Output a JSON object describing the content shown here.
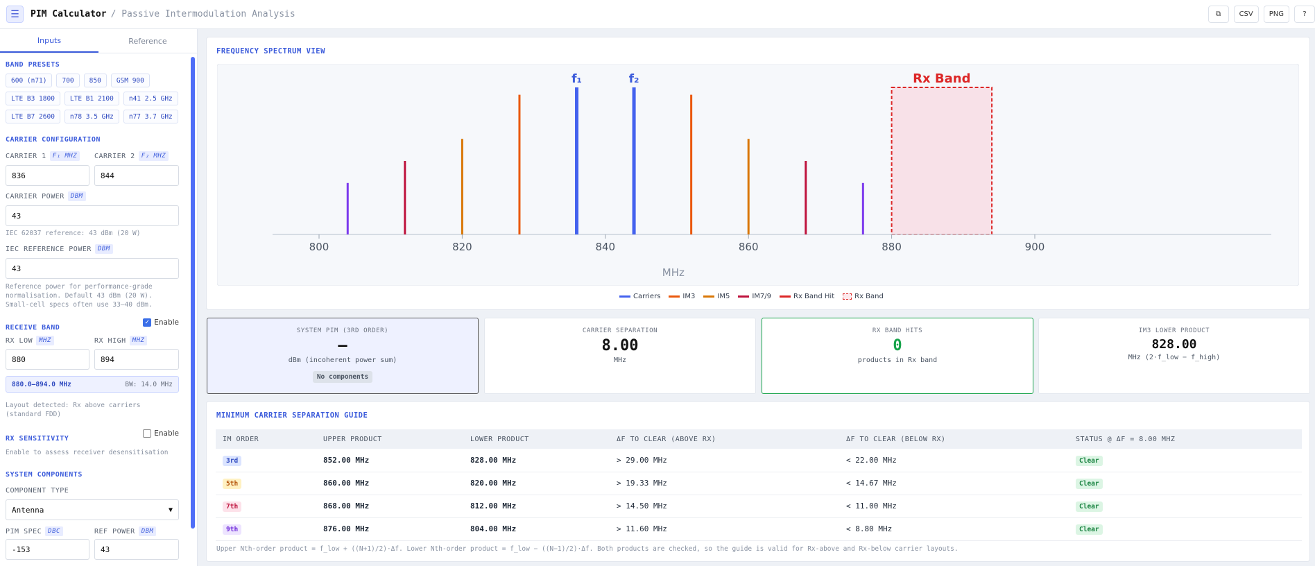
{
  "app": {
    "title": "PIM Calculator",
    "subtitle": "/ Passive Intermodulation Analysis"
  },
  "toolbar": {
    "copy_icon": "copy-icon",
    "csv": "CSV",
    "png": "PNG",
    "help_icon": "help-icon"
  },
  "sidebar": {
    "tabs": [
      "Inputs",
      "Reference"
    ],
    "band_presets_title": "BAND PRESETS",
    "presets": [
      "600 (n71)",
      "700",
      "850",
      "GSM 900",
      "LTE B3 1800",
      "LTE B1 2100",
      "n41 2.5 GHz",
      "LTE B7 2600",
      "n78 3.5 GHz",
      "n77 3.7 GHz"
    ],
    "carrier_title": "CARRIER CONFIGURATION",
    "carrier1_label": "CARRIER 1",
    "carrier1_unit": "F₁ MHZ",
    "carrier1_value": "836",
    "carrier2_label": "CARRIER 2",
    "carrier2_unit": "F₂ MHZ",
    "carrier2_value": "844",
    "power_label": "CARRIER POWER",
    "power_unit": "DBM",
    "power_value": "43",
    "power_hint": "IEC 62037 reference: 43 dBm (20 W)",
    "iec_label": "IEC REFERENCE POWER",
    "iec_unit": "DBM",
    "iec_value": "43",
    "iec_hint": "Reference power for performance-grade normalisation. Default 43 dBm (20 W). Small-cell specs often use 33–40 dBm.",
    "rx_title": "RECEIVE BAND",
    "rx_enable": "Enable",
    "rx_low_label": "RX LOW",
    "rx_low_unit": "MHZ",
    "rx_low_value": "880",
    "rx_high_label": "RX HIGH",
    "rx_high_unit": "MHZ",
    "rx_high_value": "894",
    "rx_range": "880.0–894.0 MHz",
    "rx_bw": "BW: 14.0 MHz",
    "rx_hint": "Layout detected: Rx above carriers (standard FDD)",
    "sens_title": "RX SENSITIVITY",
    "sens_enable": "Enable",
    "sens_hint": "Enable to assess receiver desensitisation",
    "sys_title": "SYSTEM COMPONENTS",
    "comp_label": "COMPONENT TYPE",
    "comp_value": "Antenna",
    "pim_label": "PIM SPEC",
    "pim_unit": "DBC",
    "pim_value": "-153",
    "ref_label": "REF POWER",
    "ref_unit": "DBM",
    "ref_value": "43"
  },
  "spectrum": {
    "title": "FREQUENCY SPECTRUM VIEW",
    "legend": [
      "Carriers",
      "IM3",
      "IM5",
      "IM7/9",
      "Rx Band Hit",
      "Rx Band"
    ]
  },
  "chart_data": {
    "type": "bar",
    "xlabel": "MHz",
    "xlim": [
      796,
      902
    ],
    "x_ticks": [
      800,
      820,
      840,
      860,
      880,
      900
    ],
    "rx_band": {
      "label": "Rx Band",
      "low": 880,
      "high": 894
    },
    "carrier_labels": [
      "f₁",
      "f₂"
    ],
    "series": [
      {
        "name": "Carriers",
        "color": "#4361ee",
        "x": [
          836,
          844
        ],
        "values": [
          1.0,
          1.0
        ]
      },
      {
        "name": "IM3",
        "color": "#ea580c",
        "x": [
          828,
          852
        ],
        "values": [
          0.95,
          0.95
        ]
      },
      {
        "name": "IM5",
        "color": "#d97706",
        "x": [
          820,
          860
        ],
        "values": [
          0.65,
          0.65
        ]
      },
      {
        "name": "IM7/9",
        "color": "#be123c",
        "x": [
          812,
          868
        ],
        "values": [
          0.5,
          0.5
        ]
      },
      {
        "name": "IM9",
        "color": "#7c3aed",
        "x": [
          804,
          876
        ],
        "values": [
          0.35,
          0.35
        ]
      }
    ]
  },
  "stats": [
    {
      "title": "SYSTEM PIM (3RD ORDER)",
      "value": "—",
      "sub": "dBm (incoherent power sum)",
      "badge": "No components"
    },
    {
      "title": "CARRIER SEPARATION",
      "value": "8.00",
      "sub": "MHz"
    },
    {
      "title": "RX BAND HITS",
      "value": "0",
      "sub": "products in Rx band"
    },
    {
      "title": "IM3 LOWER PRODUCT",
      "value": "828.00",
      "sub": "MHz (2·f_low − f_high)"
    }
  ],
  "guide": {
    "title": "MINIMUM CARRIER SEPARATION GUIDE",
    "headers": [
      "IM ORDER",
      "UPPER PRODUCT",
      "LOWER PRODUCT",
      "ΔF TO CLEAR (ABOVE RX)",
      "ΔF TO CLEAR (BELOW RX)",
      "STATUS @ ΔF = 8.00 MHZ"
    ],
    "rows": [
      [
        "3rd",
        "852.00 MHz",
        "828.00 MHz",
        "> 29.00 MHz",
        "< 22.00 MHz",
        "Clear"
      ],
      [
        "5th",
        "860.00 MHz",
        "820.00 MHz",
        "> 19.33 MHz",
        "< 14.67 MHz",
        "Clear"
      ],
      [
        "7th",
        "868.00 MHz",
        "812.00 MHz",
        "> 14.50 MHz",
        "< 11.00 MHz",
        "Clear"
      ],
      [
        "9th",
        "876.00 MHz",
        "804.00 MHz",
        "> 11.60 MHz",
        "< 8.80 MHz",
        "Clear"
      ]
    ],
    "order_colors": [
      [
        "#dbe4ff",
        "#2f4ac0"
      ],
      [
        "#fff1c2",
        "#b45309"
      ],
      [
        "#fde2ea",
        "#be123c"
      ],
      [
        "#ede4ff",
        "#6d28d9"
      ]
    ],
    "footnote": "Upper Nth-order product = f_low + ((N+1)/2)·Δf. Lower Nth-order product = f_low − ((N−1)/2)·Δf. Both products are checked, so the guide is valid for Rx-above and Rx-below carrier layouts."
  }
}
